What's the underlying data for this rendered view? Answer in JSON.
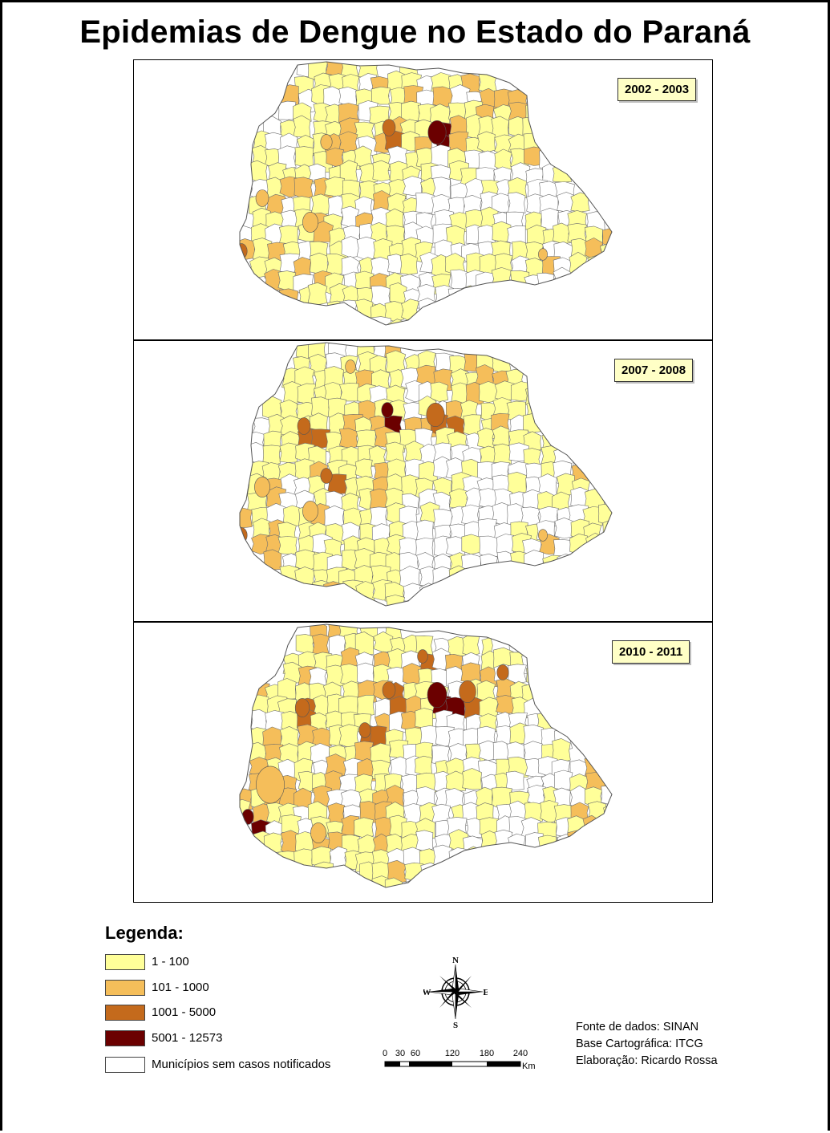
{
  "title": "Epidemias de Dengue no Estado do Paraná",
  "maps": [
    {
      "period": "2002 - 2003"
    },
    {
      "period": "2007 - 2008"
    },
    {
      "period": "2010 - 2011"
    }
  ],
  "legend": {
    "title": "Legenda:",
    "items": [
      {
        "label": "1 - 100",
        "color": "#ffff99"
      },
      {
        "label": "101 - 1000",
        "color": "#f5be5a"
      },
      {
        "label": "1001 - 5000",
        "color": "#c46a1c"
      },
      {
        "label": "5001 - 12573",
        "color": "#6b0000"
      },
      {
        "label": "Municípios sem casos notificados",
        "color": "#ffffff"
      }
    ]
  },
  "compass": {
    "n": "N",
    "s": "S",
    "e": "E",
    "w": "W",
    "icon": "compass-rose-icon"
  },
  "scale": {
    "ticks": [
      "0",
      "30",
      "60",
      "120",
      "180",
      "240"
    ],
    "unit": "Km"
  },
  "credits": {
    "source": "Fonte de dados: SINAN",
    "base": "Base Cartográfica: ITCG",
    "author": "Elaboração: Ricardo Rossa"
  }
}
